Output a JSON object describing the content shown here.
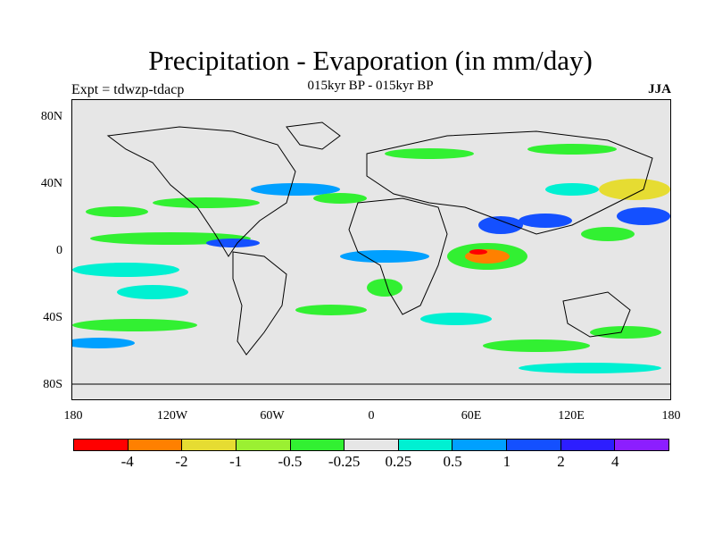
{
  "title": "Precipitation - Evaporation (in mm/day)",
  "subtitle": "015kyr BP - 015kyr BP",
  "left_label": "Expt = tdwzp-tdacp",
  "right_label": "JJA",
  "lat_labels": [
    "80N",
    "40N",
    "0",
    "40S",
    "80S"
  ],
  "lon_labels": [
    "180",
    "120W",
    "60W",
    "0",
    "60E",
    "120E",
    "180"
  ],
  "colorbar": {
    "colors": [
      "#ff0000",
      "#ff8000",
      "#e6dc32",
      "#9bf032",
      "#32f032",
      "#e6e6e6",
      "#00f0d2",
      "#00a0ff",
      "#1450ff",
      "#2d1eff",
      "#8c1eff"
    ],
    "labels": [
      "-4",
      "-2",
      "-1",
      "-0.5",
      "-0.25",
      "0.25",
      "0.5",
      "1",
      "2",
      "4"
    ]
  }
}
